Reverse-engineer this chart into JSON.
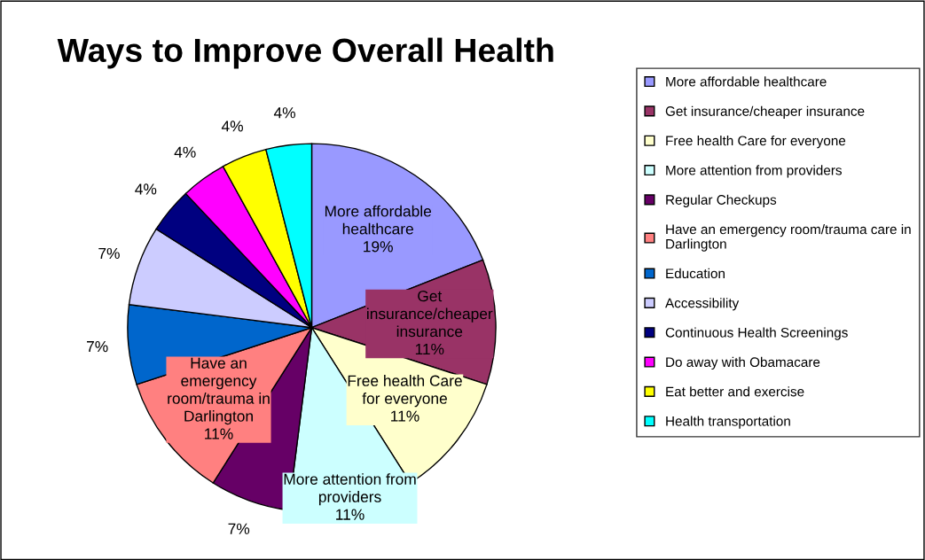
{
  "chart_data": {
    "type": "pie",
    "title": "Ways to Improve Overall Health",
    "categories": [
      "More affordable healthcare",
      "Get insurance/cheaper insurance",
      "Free health Care for everyone",
      "More attention from providers",
      "Regular Checkups",
      "Have an emergency room/trauma care in Darlington",
      "Education",
      "Accessibility",
      "Continuous Health Screenings",
      "Do away with Obamacare",
      "Eat better and exercise",
      "Health transportation"
    ],
    "values": [
      19,
      11,
      11,
      11,
      7,
      11,
      7,
      7,
      4,
      4,
      4,
      4
    ],
    "colors": [
      "#9999ff",
      "#993366",
      "#ffffcc",
      "#ccffff",
      "#660066",
      "#ff8080",
      "#0066cc",
      "#ccccff",
      "#000080",
      "#ff00ff",
      "#ffff00",
      "#00ffff"
    ],
    "value_labels": [
      "More affordable\nhealthcare\n19%",
      "Get\ninsurance/cheaper\ninsurance\n11%",
      "Free health Care\nfor everyone\n11%",
      "More attention from\nproviders\n11%",
      "7%",
      "Have an\nemergency\nroom/trauma in\nDarlington\n11%",
      "7%",
      "7%",
      "4%",
      "4%",
      "4%",
      "4%"
    ],
    "legend": "right"
  }
}
